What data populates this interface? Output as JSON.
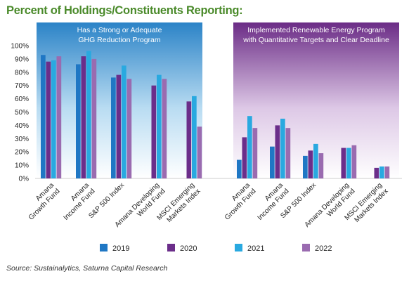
{
  "header": {
    "title": "Percent of Holdings/Constituents Reporting:"
  },
  "source": "Source: Sustainalytics, Saturna Capital Research",
  "colors": {
    "title": "#4a8a2a",
    "2019": "#1f77c4",
    "2020": "#6b2e8a",
    "2021": "#29a9e0",
    "2022": "#9a6bb0",
    "panel_left_top": "#2b83c7",
    "panel_right_top": "#6b2c86"
  },
  "chart_data": {
    "type": "bar",
    "ylim": [
      0,
      100
    ],
    "yticks": [
      0,
      10,
      20,
      30,
      40,
      50,
      60,
      70,
      80,
      90,
      100
    ],
    "ytick_labels": [
      "0%",
      "10%",
      "20%",
      "30%",
      "40%",
      "50%",
      "60%",
      "70%",
      "80%",
      "90%",
      "100%"
    ],
    "legend": [
      "2019",
      "2020",
      "2021",
      "2022"
    ],
    "legend_position": "bottom",
    "panels": [
      {
        "title_lines": [
          "Has a Strong or Adequate",
          "GHG Reduction Program"
        ],
        "categories": [
          [
            "Amana",
            "Growth Fund"
          ],
          [
            "Amana",
            "Income Fund"
          ],
          [
            "S&P 500 Index"
          ],
          [
            "Amana Developing",
            "World Fund"
          ],
          [
            "MSCI Emerging",
            "Markets Index"
          ]
        ],
        "series": [
          {
            "name": "2019",
            "values": [
              93,
              86,
              76,
              null,
              null
            ]
          },
          {
            "name": "2020",
            "values": [
              88,
              92,
              78,
              70,
              58
            ]
          },
          {
            "name": "2021",
            "values": [
              89,
              96,
              85,
              78,
              62
            ]
          },
          {
            "name": "2022",
            "values": [
              92,
              90,
              75,
              75,
              39
            ]
          }
        ]
      },
      {
        "title_lines": [
          "Implemented Renewable Energy Program",
          "with Quantitative Targets and Clear Deadline"
        ],
        "categories": [
          [
            "Amana",
            "Growth Fund"
          ],
          [
            "Amana",
            "Income Fund"
          ],
          [
            "S&P 500 Index"
          ],
          [
            "Amana Developing",
            "World Fund"
          ],
          [
            "MSCI Emerging",
            "Markets Index"
          ]
        ],
        "series": [
          {
            "name": "2019",
            "values": [
              14,
              24,
              17,
              null,
              null
            ]
          },
          {
            "name": "2020",
            "values": [
              31,
              40,
              21,
              23,
              8
            ]
          },
          {
            "name": "2021",
            "values": [
              47,
              45,
              26,
              23,
              9
            ]
          },
          {
            "name": "2022",
            "values": [
              38,
              38,
              19,
              25,
              9
            ]
          }
        ]
      }
    ]
  }
}
